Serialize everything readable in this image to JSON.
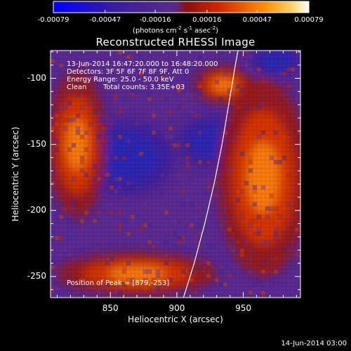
{
  "chart_data": {
    "type": "heatmap",
    "title": "Reconstructed RHESSI Image",
    "xlabel": "Heliocentric X (arcsec)",
    "ylabel": "Heliocentric Y (arcsec)",
    "xlim": [
      805,
      993
    ],
    "ylim": [
      -266,
      -79
    ],
    "x_ticks": [
      "850",
      "900",
      "950"
    ],
    "x_tick_values": [
      850,
      900,
      950
    ],
    "y_ticks": [
      "-100",
      "-150",
      "-200",
      "-250"
    ],
    "y_tick_values": [
      -100,
      -150,
      -200,
      -250
    ],
    "colorbar": {
      "ticks": [
        "-0.00079",
        "-0.00047",
        "-0.00016",
        "0.00016",
        "0.00047",
        "0.00079"
      ],
      "tick_values": [
        -0.00079,
        -0.00047,
        -0.00016,
        0.00016,
        0.00047,
        0.00079
      ],
      "range": [
        -0.00079,
        0.00079
      ],
      "unit_pre": "(photons cm",
      "unit_exp1": "-2",
      "unit_mid1": " s",
      "unit_exp2": "-1",
      "unit_mid2": " asec",
      "unit_exp3": "-2",
      "unit_post": ")",
      "colors": [
        "#0000ff",
        "#3a1a9a",
        "#5a2a8a",
        "#c02000",
        "#ff7a00",
        "#ffffff"
      ]
    },
    "annotations": {
      "time_range": "13-Jun-2014 16:47:20.000 to 16:48:20.000",
      "detectors": "Detectors: 3F 5F 6F 7F 8F 9F, Att 0",
      "energy_range": "Energy Range: 25.0 - 50.0 keV",
      "clean_label": "Clean",
      "total_counts": "Total counts: 3.35E+03",
      "peak": "Position of Peak = [879,-253]"
    },
    "limb_curve": [
      [
        905,
        -266
      ],
      [
        913,
        -240
      ],
      [
        921,
        -210
      ],
      [
        928,
        -180
      ],
      [
        934,
        -150
      ],
      [
        939,
        -120
      ],
      [
        944,
        -90
      ],
      [
        946,
        -79
      ]
    ],
    "regions": [
      {
        "kind": "low",
        "x": 862,
        "y": -160,
        "rx": 36,
        "ry": 28
      },
      {
        "kind": "low",
        "x": 930,
        "y": -148,
        "rx": 30,
        "ry": 20
      },
      {
        "kind": "low",
        "x": 975,
        "y": -87,
        "rx": 20,
        "ry": 12
      },
      {
        "kind": "high",
        "x": 870,
        "y": -248,
        "rx": 60,
        "ry": 16
      },
      {
        "kind": "high",
        "x": 825,
        "y": -150,
        "rx": 22,
        "ry": 55
      },
      {
        "kind": "high",
        "x": 965,
        "y": -175,
        "rx": 34,
        "ry": 75
      },
      {
        "kind": "high",
        "x": 935,
        "y": -105,
        "rx": 22,
        "ry": 14
      }
    ]
  },
  "timestamp": "14-Jun-2014 03:00"
}
